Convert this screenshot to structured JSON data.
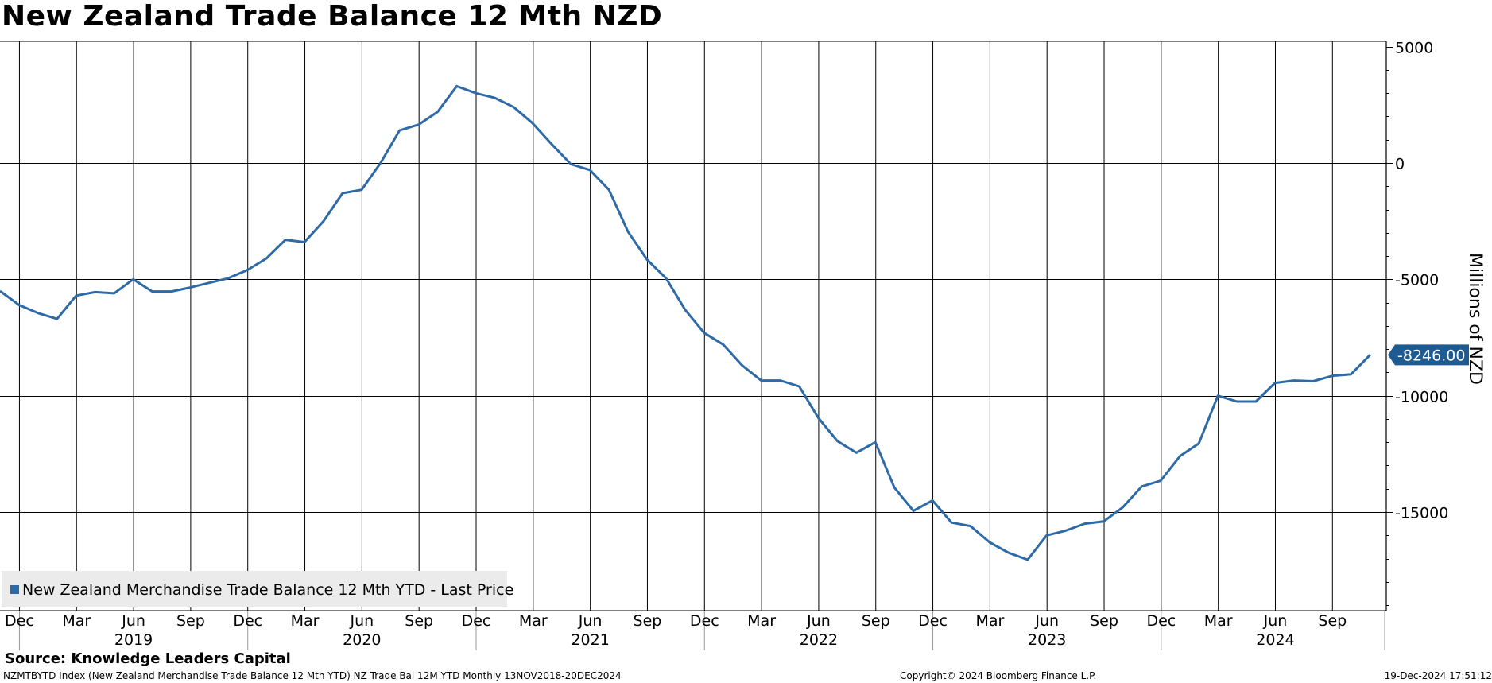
{
  "title": "New Zealand Trade Balance 12 Mth NZD",
  "source": "Source: Knowledge Leaders Capital",
  "footer": {
    "left": "NZMTBYTD Index (New Zealand Merchandise Trade Balance 12 Mth YTD) NZ Trade Bal 12M YTD  Monthly 13NOV2018-20DEC2024",
    "center": "Copyright© 2024 Bloomberg Finance L.P.",
    "right": "19-Dec-2024 17:51:12"
  },
  "colors": {
    "line": "#2e6aa6",
    "last_badge": "#1f5b93",
    "grid": "#000000",
    "legend_bg": "#ebebeb"
  },
  "chart_data": {
    "type": "line",
    "ylabel": "Millions of NZD",
    "ylim": [
      -19000,
      5000
    ],
    "yticks": [
      5000,
      0,
      -5000,
      -10000,
      -15000
    ],
    "ytick_labels": [
      "5000",
      "0",
      "-5000",
      "-10000",
      "-15000"
    ],
    "x_range": [
      "2018-11",
      "2024-12"
    ],
    "month_ticks": [
      {
        "date": "2018-12",
        "label": "Dec"
      },
      {
        "date": "2019-03",
        "label": "Mar"
      },
      {
        "date": "2019-06",
        "label": "Jun"
      },
      {
        "date": "2019-09",
        "label": "Sep"
      },
      {
        "date": "2019-12",
        "label": "Dec"
      },
      {
        "date": "2020-03",
        "label": "Mar"
      },
      {
        "date": "2020-06",
        "label": "Jun"
      },
      {
        "date": "2020-09",
        "label": "Sep"
      },
      {
        "date": "2020-12",
        "label": "Dec"
      },
      {
        "date": "2021-03",
        "label": "Mar"
      },
      {
        "date": "2021-06",
        "label": "Jun"
      },
      {
        "date": "2021-09",
        "label": "Sep"
      },
      {
        "date": "2021-12",
        "label": "Dec"
      },
      {
        "date": "2022-03",
        "label": "Mar"
      },
      {
        "date": "2022-06",
        "label": "Jun"
      },
      {
        "date": "2022-09",
        "label": "Sep"
      },
      {
        "date": "2022-12",
        "label": "Dec"
      },
      {
        "date": "2023-03",
        "label": "Mar"
      },
      {
        "date": "2023-06",
        "label": "Jun"
      },
      {
        "date": "2023-09",
        "label": "Sep"
      },
      {
        "date": "2023-12",
        "label": "Dec"
      },
      {
        "date": "2024-03",
        "label": "Mar"
      },
      {
        "date": "2024-06",
        "label": "Jun"
      },
      {
        "date": "2024-09",
        "label": "Sep"
      }
    ],
    "year_labels": [
      {
        "date": "2019-06",
        "label": "2019"
      },
      {
        "date": "2020-06",
        "label": "2020"
      },
      {
        "date": "2021-06",
        "label": "2021"
      },
      {
        "date": "2022-06",
        "label": "2022"
      },
      {
        "date": "2023-06",
        "label": "2023"
      },
      {
        "date": "2024-06",
        "label": "2024"
      }
    ],
    "year_separators": [
      "2018-12",
      "2019-12",
      "2020-12",
      "2021-12",
      "2022-12",
      "2023-12"
    ],
    "legend_position": "bottom-left",
    "last_value_label": "-8246.00",
    "series": [
      {
        "name": "New Zealand Merchandise Trade Balance 12 Mth YTD - Last Price",
        "x": [
          "2018-11",
          "2018-12",
          "2019-01",
          "2019-02",
          "2019-03",
          "2019-04",
          "2019-05",
          "2019-06",
          "2019-07",
          "2019-08",
          "2019-09",
          "2019-10",
          "2019-11",
          "2019-12",
          "2020-01",
          "2020-02",
          "2020-03",
          "2020-04",
          "2020-05",
          "2020-06",
          "2020-07",
          "2020-08",
          "2020-09",
          "2020-10",
          "2020-11",
          "2020-12",
          "2021-01",
          "2021-02",
          "2021-03",
          "2021-04",
          "2021-05",
          "2021-06",
          "2021-07",
          "2021-08",
          "2021-09",
          "2021-10",
          "2021-11",
          "2021-12",
          "2022-01",
          "2022-02",
          "2022-03",
          "2022-04",
          "2022-05",
          "2022-06",
          "2022-07",
          "2022-08",
          "2022-09",
          "2022-10",
          "2022-11",
          "2022-12",
          "2023-01",
          "2023-02",
          "2023-03",
          "2023-04",
          "2023-05",
          "2023-06",
          "2023-07",
          "2023-08",
          "2023-09",
          "2023-10",
          "2023-11",
          "2023-12",
          "2024-01",
          "2024-02",
          "2024-03",
          "2024-04",
          "2024-05",
          "2024-06",
          "2024-07",
          "2024-08",
          "2024-09",
          "2024-10",
          "2024-11"
        ],
        "values": [
          -5500,
          -6100,
          -6450,
          -6700,
          -5700,
          -5550,
          -5600,
          -5000,
          -5520,
          -5520,
          -5350,
          -5150,
          -4950,
          -4600,
          -4100,
          -3300,
          -3400,
          -2500,
          -1300,
          -1150,
          0,
          1400,
          1650,
          2200,
          3300,
          3000,
          2800,
          2400,
          1700,
          800,
          -50,
          -300,
          -1150,
          -2950,
          -4150,
          -4950,
          -6300,
          -7300,
          -7800,
          -8700,
          -9350,
          -9350,
          -9600,
          -10950,
          -11950,
          -12450,
          -12000,
          -13950,
          -14950,
          -14500,
          -15450,
          -15600,
          -16300,
          -16750,
          -17050,
          -16000,
          -15800,
          -15500,
          -15400,
          -14800,
          -13900,
          -13650,
          -12600,
          -12050,
          -10000,
          -10250,
          -10250,
          -9450,
          -9350,
          -9380,
          -9150,
          -9080,
          -8246
        ]
      }
    ]
  }
}
